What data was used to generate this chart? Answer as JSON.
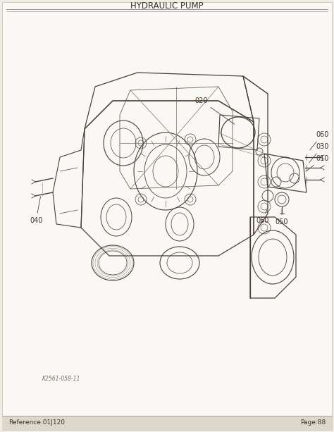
{
  "title": "HYDRAULIC PUMP",
  "bg_color": "#f0ece4",
  "page_bg": "#ffffff",
  "footer_bg": "#e8e4dc",
  "reference": "Reference:01J120",
  "page": "Page:88",
  "diagram_code": "K2561-058-11",
  "line_color": "#4a4035",
  "text_color": "#3a3028",
  "light_line": "#aaa090",
  "title_fontsize": 8.5,
  "label_fontsize": 7.0,
  "small_fontsize": 5.5
}
